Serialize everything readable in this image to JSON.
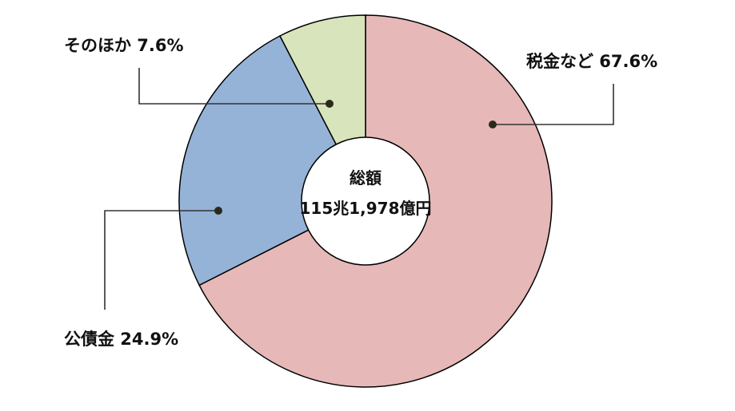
{
  "chart_data": {
    "type": "pie",
    "variant": "donut",
    "slices": [
      {
        "label": "税金など",
        "value": 67.6,
        "value_text": "67.6%",
        "color": "#e6b8b8"
      },
      {
        "label": "公債金",
        "value": 24.9,
        "value_text": "24.9%",
        "color": "#95b3d7"
      },
      {
        "label": "そのほか",
        "value": 7.6,
        "value_text": "7.6%",
        "color": "#d8e4bc"
      }
    ],
    "center": {
      "title": "総額",
      "value": "115兆1,978億円"
    },
    "start_angle_deg": 0,
    "direction": "clockwise",
    "outline_color": "#000000",
    "leader_color": "#333333",
    "dot_color": "#2a2a1a"
  }
}
